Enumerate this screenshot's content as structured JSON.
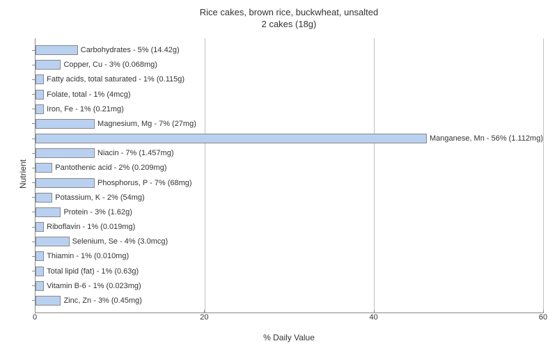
{
  "chart": {
    "type": "bar-horizontal",
    "title_line1": "Rice cakes, brown rice, buckwheat, unsalted",
    "title_line2": "2 cakes (18g)",
    "title_fontsize": 13,
    "label_fontsize": 11,
    "x_label": "% Daily Value",
    "y_label": "Nutrient",
    "xlim": [
      0,
      60
    ],
    "xtick_step": 20,
    "xticks": [
      0,
      20,
      40,
      60
    ],
    "bar_color": "#b9d1f1",
    "bar_border_color": "#888888",
    "grid_color": "#c0c0c0",
    "axis_color": "#888888",
    "background_color": "#ffffff",
    "text_color": "#333333",
    "bars": [
      {
        "label": "Carbohydrates - 5% (14.42g)",
        "value": 5
      },
      {
        "label": "Copper, Cu - 3% (0.068mg)",
        "value": 3
      },
      {
        "label": "Fatty acids, total saturated - 1% (0.115g)",
        "value": 1
      },
      {
        "label": "Folate, total - 1% (4mcg)",
        "value": 1
      },
      {
        "label": "Iron, Fe - 1% (0.21mg)",
        "value": 1
      },
      {
        "label": "Magnesium, Mg - 7% (27mg)",
        "value": 7
      },
      {
        "label": "Manganese, Mn - 56% (1.112mg)",
        "value": 56
      },
      {
        "label": "Niacin - 7% (1.457mg)",
        "value": 7
      },
      {
        "label": "Pantothenic acid - 2% (0.209mg)",
        "value": 2
      },
      {
        "label": "Phosphorus, P - 7% (68mg)",
        "value": 7
      },
      {
        "label": "Potassium, K - 2% (54mg)",
        "value": 2
      },
      {
        "label": "Protein - 3% (1.62g)",
        "value": 3
      },
      {
        "label": "Riboflavin - 1% (0.019mg)",
        "value": 1
      },
      {
        "label": "Selenium, Se - 4% (3.0mcg)",
        "value": 4
      },
      {
        "label": "Thiamin - 1% (0.010mg)",
        "value": 1
      },
      {
        "label": "Total lipid (fat) - 1% (0.63g)",
        "value": 1
      },
      {
        "label": "Vitamin B-6 - 1% (0.023mg)",
        "value": 1
      },
      {
        "label": "Zinc, Zn - 3% (0.45mg)",
        "value": 3
      }
    ]
  }
}
